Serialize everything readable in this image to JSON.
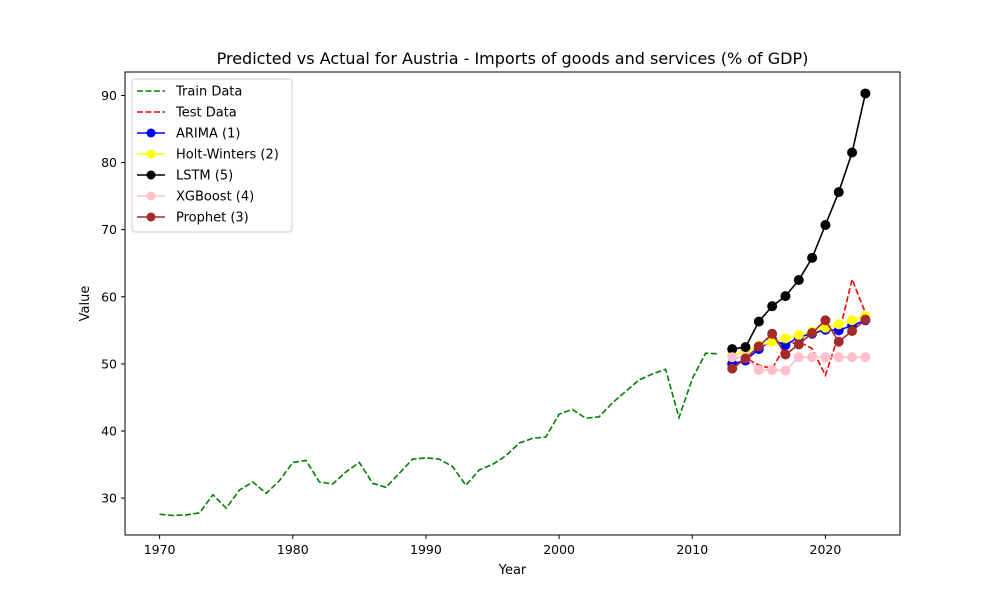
{
  "chart_data": {
    "type": "line",
    "title": "Predicted vs Actual for Austria - Imports of goods and services (% of GDP)",
    "xlabel": "Year",
    "ylabel": "Value",
    "xlim": [
      1967.4,
      2025.6
    ],
    "ylim": [
      24.5,
      93.5
    ],
    "xticks": [
      1970,
      1980,
      1990,
      2000,
      2010,
      2020
    ],
    "yticks": [
      30,
      40,
      50,
      60,
      70,
      80,
      90
    ],
    "grid": false,
    "legend_position": "top-left",
    "series": [
      {
        "name": "Train Data",
        "color": "#008000",
        "style": "dashed",
        "marker": "none",
        "x": [
          1970,
          1971,
          1972,
          1973,
          1974,
          1975,
          1976,
          1977,
          1978,
          1979,
          1980,
          1981,
          1982,
          1983,
          1984,
          1985,
          1986,
          1987,
          1988,
          1989,
          1990,
          1991,
          1992,
          1993,
          1994,
          1995,
          1996,
          1997,
          1998,
          1999,
          2000,
          2001,
          2002,
          2003,
          2004,
          2005,
          2006,
          2007,
          2008,
          2009,
          2010,
          2011,
          2012
        ],
        "y": [
          27.6,
          27.4,
          27.5,
          27.8,
          30.5,
          28.5,
          31.2,
          32.4,
          30.7,
          32.6,
          35.3,
          35.6,
          32.4,
          32.1,
          33.9,
          35.3,
          32.2,
          31.6,
          33.7,
          35.8,
          36.0,
          35.8,
          34.7,
          31.9,
          34.2,
          35.0,
          36.3,
          38.2,
          38.9,
          39.1,
          42.5,
          43.2,
          41.9,
          42.1,
          44.2,
          45.9,
          47.6,
          48.5,
          49.2,
          42.0,
          47.8,
          51.6,
          51.5
        ]
      },
      {
        "name": "Test Data",
        "color": "#ff0000",
        "style": "dashed",
        "marker": "none",
        "x": [
          2013,
          2014,
          2015,
          2016,
          2017,
          2018,
          2019,
          2020,
          2021,
          2022,
          2023
        ],
        "y": [
          51.0,
          50.9,
          49.8,
          49.3,
          52.8,
          53.3,
          52.3,
          48.3,
          54.3,
          62.6,
          57.6
        ]
      },
      {
        "name": "ARIMA (1)",
        "color": "#0000ff",
        "style": "solid",
        "marker": "circle",
        "x": [
          2013,
          2014,
          2015,
          2016,
          2017,
          2018,
          2019,
          2020,
          2021,
          2022,
          2023
        ],
        "y": [
          50.0,
          50.5,
          52.2,
          53.6,
          52.8,
          54.0,
          54.5,
          55.1,
          55.0,
          55.7,
          56.5
        ]
      },
      {
        "name": "Holt-Winters (2)",
        "color": "#ffff00",
        "style": "solid",
        "marker": "circle",
        "x": [
          2013,
          2014,
          2015,
          2016,
          2017,
          2018,
          2019,
          2020,
          2021,
          2022,
          2023
        ],
        "y": [
          51.2,
          51.9,
          52.7,
          53.3,
          53.8,
          54.3,
          54.8,
          55.4,
          55.9,
          56.5,
          57.1
        ]
      },
      {
        "name": "LSTM (5)",
        "color": "#000000",
        "style": "solid",
        "marker": "circle",
        "x": [
          2013,
          2014,
          2015,
          2016,
          2017,
          2018,
          2019,
          2020,
          2021,
          2022,
          2023
        ],
        "y": [
          52.2,
          52.5,
          56.3,
          58.6,
          60.1,
          62.5,
          65.8,
          70.7,
          75.6,
          81.5,
          90.3
        ]
      },
      {
        "name": "XGBoost (4)",
        "color": "#ffc0cb",
        "style": "solid",
        "marker": "circle",
        "x": [
          2013,
          2014,
          2015,
          2016,
          2017,
          2018,
          2019,
          2020,
          2021,
          2022,
          2023
        ],
        "y": [
          51.0,
          51.0,
          49.1,
          49.1,
          49.0,
          51.0,
          51.0,
          51.0,
          51.0,
          51.0,
          51.0
        ]
      },
      {
        "name": "Prophet (3)",
        "color": "#a52a2a",
        "style": "solid",
        "marker": "circle",
        "x": [
          2013,
          2014,
          2015,
          2016,
          2017,
          2018,
          2019,
          2020,
          2021,
          2022,
          2023
        ],
        "y": [
          49.3,
          50.8,
          52.6,
          54.5,
          51.4,
          52.9,
          54.6,
          56.5,
          53.3,
          54.9,
          56.6
        ]
      }
    ]
  }
}
